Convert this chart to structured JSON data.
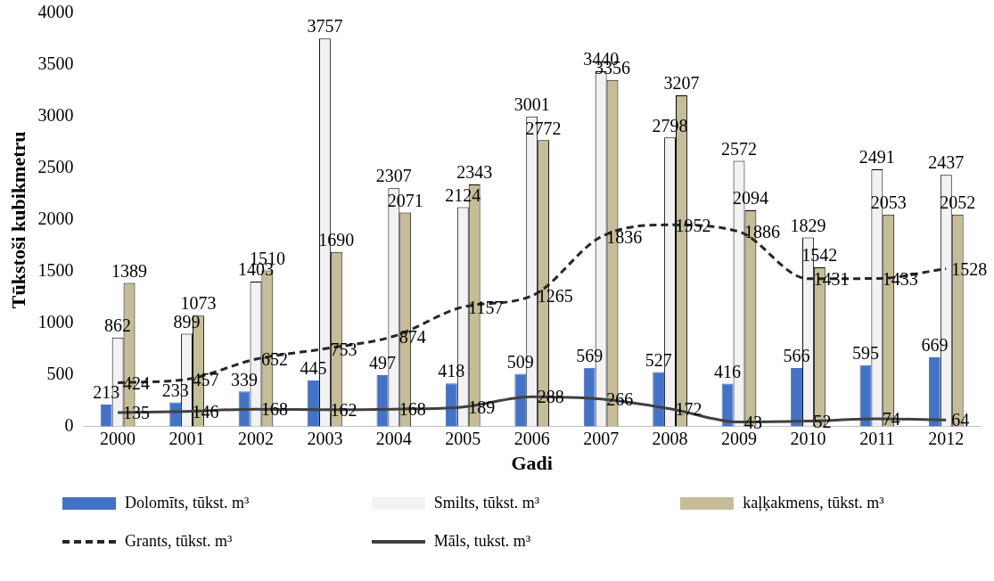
{
  "chart_data": {
    "type": "bar",
    "xlabel": "Gadi",
    "ylabel": "Tūkstoši kubikmetru",
    "categories": [
      "2000",
      "2001",
      "2002",
      "2003",
      "2004",
      "2005",
      "2006",
      "2007",
      "2008",
      "2009",
      "2010",
      "2011",
      "2012"
    ],
    "series": [
      {
        "name": "Dolomīts, tūkst. m³",
        "color": "#4472c4",
        "values": [
          213,
          233,
          339,
          445,
          497,
          418,
          509,
          569,
          527,
          416,
          566,
          595,
          669
        ]
      },
      {
        "name": "Smilts, tūkst. m³",
        "color": "#f2f2f2",
        "values": [
          862,
          899,
          1403,
          3757,
          2307,
          2124,
          3001,
          3440,
          2798,
          2572,
          1829,
          2491,
          2437
        ]
      },
      {
        "name": "kaļķakmens, tūkst. m³",
        "color": "#c4bd97",
        "values": [
          1389,
          1073,
          1510,
          1690,
          2071,
          2343,
          2772,
          3356,
          3207,
          2094,
          1542,
          2053,
          2052
        ]
      },
      {
        "name": "Grants, tūkst. m³",
        "color": "#262626",
        "type": "line",
        "line_style": "dashed",
        "values": [
          424,
          457,
          652,
          753,
          874,
          1157,
          1265,
          1836,
          1952,
          1886,
          1431,
          1433,
          1528
        ]
      },
      {
        "name": "Māls, tukst. m³",
        "color": "#404040",
        "type": "line",
        "line_style": "solid",
        "values": [
          135,
          146,
          168,
          162,
          168,
          189,
          288,
          266,
          172,
          43,
          52,
          74,
          64
        ]
      }
    ],
    "ylim": [
      0,
      4000
    ],
    "yticks": [
      0,
      500,
      1000,
      1500,
      2000,
      2500,
      3000,
      3500,
      4000
    ],
    "grid": false,
    "legend": "bottom",
    "marker": "none",
    "data_labels": true
  }
}
